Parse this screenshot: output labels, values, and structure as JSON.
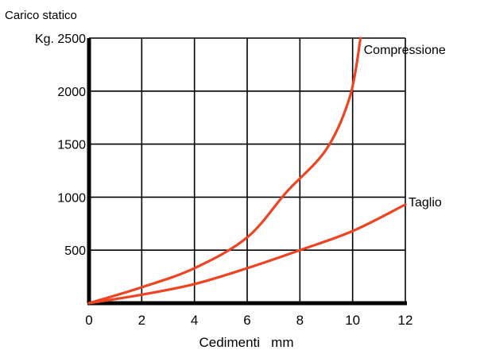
{
  "chart_data": {
    "type": "line",
    "ylabel_line1": "Carico statico",
    "ylabel_unit": "Kg.",
    "xlabel": "Cedimenti   mm",
    "xlim": [
      0,
      12
    ],
    "ylim": [
      0,
      2500
    ],
    "x_ticks": [
      0,
      2,
      4,
      6,
      8,
      10,
      12
    ],
    "y_ticks": [
      500,
      1000,
      1500,
      2000,
      2500
    ],
    "grid": true,
    "series": [
      {
        "name": "Compressione",
        "color": "#ee4422",
        "x": [
          0,
          2,
          4,
          6,
          7.5,
          9,
          9.9,
          10.3
        ],
        "y": [
          0,
          150,
          330,
          620,
          1050,
          1450,
          1950,
          2500
        ]
      },
      {
        "name": "Taglio",
        "color": "#ee4422",
        "x": [
          0,
          2,
          4,
          6,
          8,
          10,
          12
        ],
        "y": [
          0,
          80,
          180,
          330,
          500,
          680,
          930
        ]
      }
    ]
  }
}
